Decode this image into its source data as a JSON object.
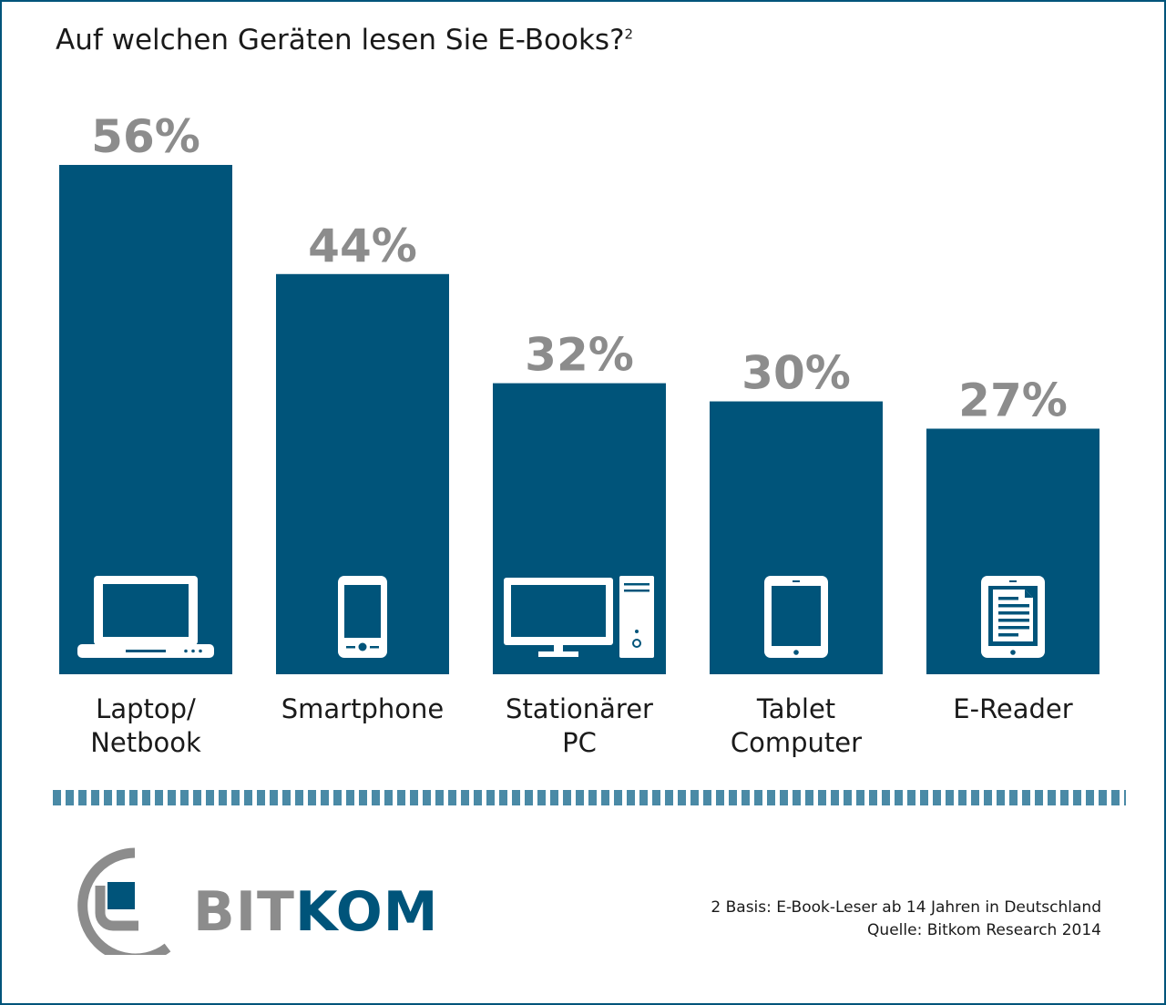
{
  "title": "Auf welchen Geräten lesen Sie E-Books?",
  "title_superscript": "2",
  "colors": {
    "bar": "#00547a",
    "value_label": "#8c8c8c",
    "divider": "#4a8aa6"
  },
  "chart_data": {
    "type": "bar",
    "title": "Auf welchen Geräten lesen Sie E-Books?",
    "categories": [
      [
        "Laptop/",
        "Netbook"
      ],
      [
        "Smartphone"
      ],
      [
        "Stationärer",
        "PC"
      ],
      [
        "Tablet",
        "Computer"
      ],
      [
        "E-Reader"
      ]
    ],
    "values": [
      56,
      44,
      32,
      30,
      27
    ],
    "value_labels": [
      "56%",
      "44%",
      "32%",
      "30%",
      "27%"
    ],
    "icons": [
      "laptop-icon",
      "smartphone-icon",
      "desktop-pc-icon",
      "tablet-icon",
      "e-reader-icon"
    ],
    "unit": "%",
    "ylim": [
      0,
      56
    ],
    "grid": false,
    "legend": "none"
  },
  "logo": {
    "part1": "BIT",
    "part2": "KOM"
  },
  "footnote": {
    "line1": "2 Basis: E-Book-Leser ab 14 Jahren in Deutschland",
    "line2": "Quelle: Bitkom Research 2014"
  }
}
